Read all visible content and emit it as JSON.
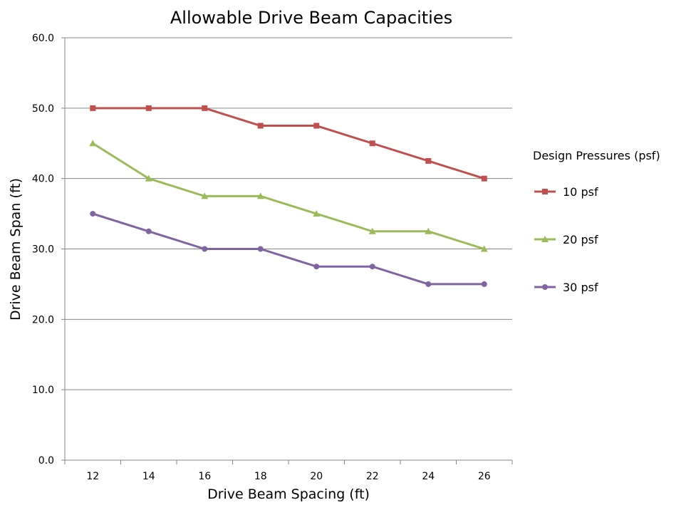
{
  "chart_data": {
    "type": "line",
    "title": "Allowable Drive Beam Capacities",
    "xlabel": "Drive Beam Spacing (ft)",
    "ylabel": "Drive Beam Span (ft)",
    "categories": [
      "12",
      "14",
      "16",
      "18",
      "20",
      "22",
      "24",
      "26"
    ],
    "ylim": [
      0,
      60
    ],
    "yticks": [
      "0.0",
      "10.0",
      "20.0",
      "30.0",
      "40.0",
      "50.0",
      "60.0"
    ],
    "grid": "horizontal",
    "legend_title": "Design Pressures (psf)",
    "legend_position": "right",
    "series": [
      {
        "name": "10 psf",
        "color": "#c0504d",
        "marker": "square",
        "values": [
          50,
          50,
          50,
          47.5,
          47.5,
          45,
          42.5,
          40
        ]
      },
      {
        "name": "20 psf",
        "color": "#9bbb59",
        "marker": "triangle",
        "values": [
          45,
          40,
          37.5,
          37.5,
          35,
          32.5,
          32.5,
          30
        ]
      },
      {
        "name": "30 psf",
        "color": "#8064a2",
        "marker": "circle",
        "values": [
          35,
          32.5,
          30,
          30,
          27.5,
          27.5,
          25,
          25
        ]
      }
    ]
  }
}
